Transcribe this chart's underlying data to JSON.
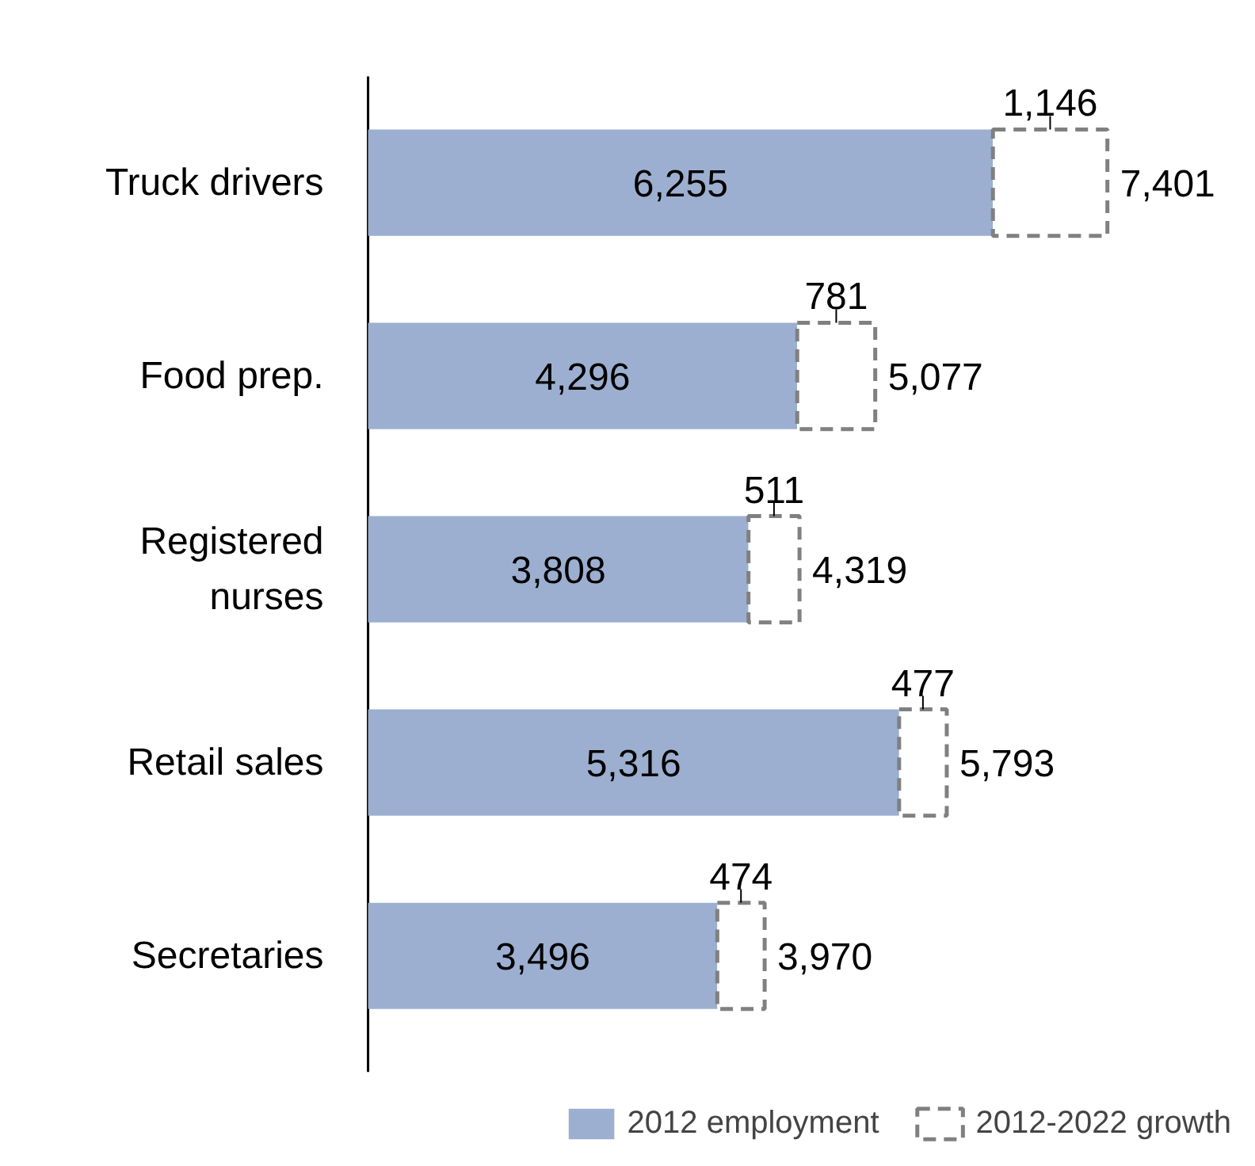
{
  "chart_data": {
    "type": "bar",
    "orientation": "horizontal",
    "stacked": true,
    "data_labels": true,
    "grid": false,
    "legend": "bottom",
    "categories": [
      "Truck drivers",
      "Food prep.",
      "Registered nurses",
      "Retail sales",
      "Secretaries"
    ],
    "series": [
      {
        "name": "2012 employment",
        "color": "#9dafd0",
        "values": [
          6255,
          4296,
          3808,
          5316,
          3496
        ],
        "value_labels": [
          "6,255",
          "4,296",
          "3,808",
          "5,316",
          "3,496"
        ]
      },
      {
        "name": "2012-2022 growth",
        "color": "#808080",
        "line_style": "dashed",
        "values": [
          1146,
          781,
          511,
          477,
          474
        ],
        "value_labels": [
          "1,146",
          "781",
          "511",
          "477",
          "474"
        ]
      }
    ],
    "totals": [
      "7,401",
      "5,077",
      "4,319",
      "5,793",
      "3,970"
    ]
  }
}
